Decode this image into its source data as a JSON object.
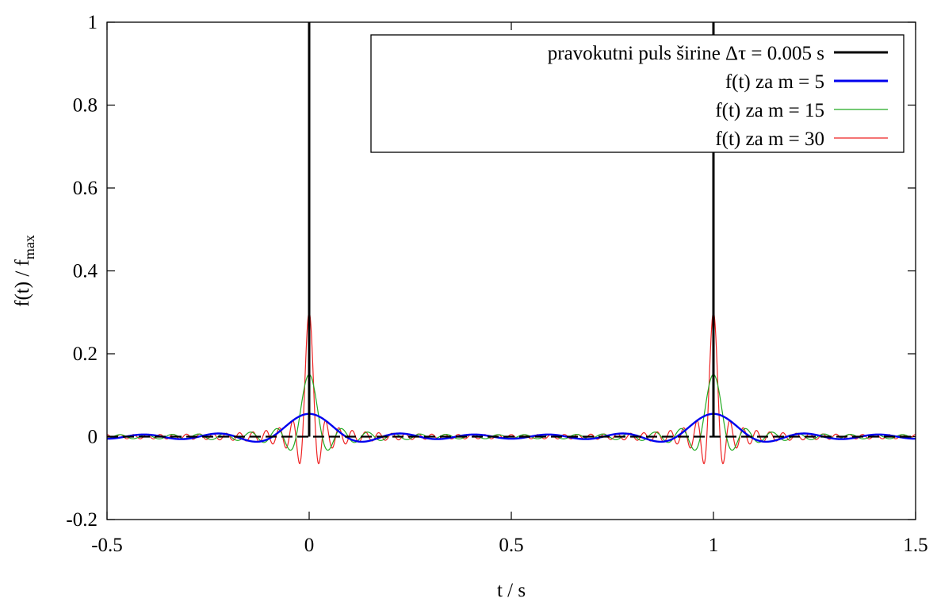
{
  "chart_data": {
    "type": "line",
    "title": "",
    "xlabel": "t / s",
    "ylabel_main": "f(t) / f",
    "ylabel_sub": "max",
    "xlim": [
      -0.5,
      1.5
    ],
    "ylim": [
      -0.2,
      1.0
    ],
    "x_ticks": [
      -0.5,
      0,
      0.5,
      1,
      1.5
    ],
    "x_tick_labels": [
      "-0.5",
      "0",
      "0.5",
      "1",
      "1.5"
    ],
    "y_ticks": [
      -0.2,
      0,
      0.2,
      0.4,
      0.6,
      0.8,
      1
    ],
    "y_tick_labels": [
      "-0.2",
      "0",
      "0.2",
      "0.4",
      "0.6",
      "0.8",
      "1"
    ],
    "grid": false,
    "legend_position": "top-right",
    "pulse": {
      "period": 1,
      "width": 0.005,
      "centers": [
        0,
        1
      ]
    },
    "series": [
      {
        "name": "pravokutni puls širine Δτ = 0.005 s",
        "m": null,
        "color": "#000000"
      },
      {
        "name": "f(t) za m = 5",
        "m": 5,
        "color": "#0000ee"
      },
      {
        "name": "f(t) za m = 15",
        "m": 15,
        "color": "#22aa22"
      },
      {
        "name": "f(t) za m = 30",
        "m": 30,
        "color": "#ee2222"
      }
    ],
    "peak_values": {
      "m5": 0.055,
      "m15": 0.15,
      "m30": 0.3
    }
  }
}
